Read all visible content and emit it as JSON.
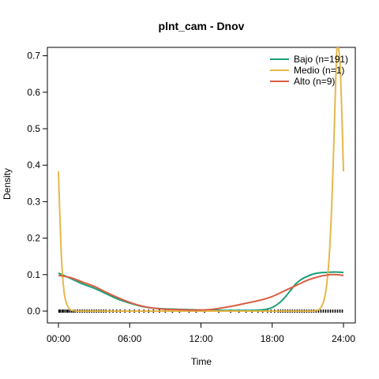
{
  "chart_data": {
    "type": "line",
    "title": "plnt_cam - Dnov",
    "xlabel": "Time",
    "ylabel": "Density",
    "xlim": [
      0,
      24
    ],
    "ylim": [
      0,
      0.71
    ],
    "x_ticks": [
      {
        "value": 0,
        "label": "00:00"
      },
      {
        "value": 6,
        "label": "06:00"
      },
      {
        "value": 12,
        "label": "12:00"
      },
      {
        "value": 18,
        "label": "18:00"
      },
      {
        "value": 24,
        "label": "24:00"
      }
    ],
    "y_ticks": [
      {
        "value": 0.0,
        "label": "0.0"
      },
      {
        "value": 0.1,
        "label": "0.1"
      },
      {
        "value": 0.2,
        "label": "0.2"
      },
      {
        "value": 0.3,
        "label": "0.3"
      },
      {
        "value": 0.4,
        "label": "0.4"
      },
      {
        "value": 0.5,
        "label": "0.5"
      },
      {
        "value": 0.6,
        "label": "0.6"
      },
      {
        "value": 0.7,
        "label": "0.7"
      }
    ],
    "grid": false,
    "legend_position": "top-right",
    "series": [
      {
        "name": "Bajo (n=191)",
        "color": "#1b9e77",
        "x": [
          0,
          1,
          2,
          3,
          4,
          5,
          6,
          7,
          8,
          9,
          10,
          11,
          12,
          13,
          14,
          15,
          16,
          17,
          17.5,
          18,
          18.5,
          19,
          19.5,
          20,
          20.5,
          21,
          21.5,
          22,
          22.5,
          23,
          23.5,
          24
        ],
        "y": [
          0.104,
          0.09,
          0.075,
          0.063,
          0.048,
          0.033,
          0.022,
          0.013,
          0.008,
          0.006,
          0.005,
          0.004,
          0.003,
          0.003,
          0.002,
          0.002,
          0.002,
          0.003,
          0.005,
          0.01,
          0.02,
          0.035,
          0.055,
          0.075,
          0.088,
          0.096,
          0.102,
          0.105,
          0.106,
          0.107,
          0.107,
          0.106
        ]
      },
      {
        "name": "Medio (n=1)",
        "color": "#e6b84a",
        "x": [
          0,
          0.1,
          0.2,
          0.3,
          0.45,
          0.6,
          0.8,
          1.0,
          1.3,
          1.6,
          2,
          4,
          6,
          8,
          10,
          12,
          14,
          16,
          18,
          20,
          21,
          21.5,
          21.8,
          22,
          22.2,
          22.4,
          22.6,
          22.8,
          23.0,
          23.15,
          23.3,
          23.45,
          23.6,
          23.75,
          23.9,
          24
        ],
        "y": [
          0.383,
          0.28,
          0.19,
          0.12,
          0.06,
          0.03,
          0.012,
          0.004,
          0.001,
          0.0,
          0.0,
          0.0,
          0.0,
          0.0,
          0.0,
          0.0,
          0.0,
          0.0,
          0.0,
          0.0,
          0.0,
          0.0,
          0.002,
          0.006,
          0.015,
          0.035,
          0.075,
          0.15,
          0.28,
          0.42,
          0.58,
          0.72,
          0.72,
          0.65,
          0.5,
          0.383
        ]
      },
      {
        "name": "Alto (n=9)",
        "color": "#d95f45",
        "x": [
          0,
          1,
          2,
          3,
          4,
          5,
          6,
          7,
          8,
          9,
          10,
          11,
          12,
          13,
          14,
          15,
          16,
          17,
          18,
          19,
          20,
          21,
          22,
          23,
          24
        ],
        "y": [
          0.098,
          0.092,
          0.08,
          0.068,
          0.052,
          0.037,
          0.024,
          0.014,
          0.008,
          0.005,
          0.004,
          0.003,
          0.003,
          0.005,
          0.01,
          0.016,
          0.023,
          0.03,
          0.04,
          0.055,
          0.07,
          0.085,
          0.095,
          0.1,
          0.098
        ]
      }
    ],
    "rug": {
      "color": "#000000",
      "x": [
        0.05,
        0.15,
        0.3,
        0.4,
        0.55,
        0.7,
        0.8,
        0.95,
        1.1,
        1.25,
        1.4,
        1.6,
        1.8,
        2.0,
        2.2,
        2.4,
        2.6,
        2.8,
        3.0,
        3.2,
        3.4,
        3.6,
        3.8,
        4.0,
        4.3,
        4.6,
        4.9,
        5.2,
        5.6,
        6.0,
        6.4,
        6.8,
        7.2,
        7.6,
        8.0,
        8.5,
        9.0,
        9.6,
        10.2,
        11.0,
        11.6,
        12.3,
        13.5,
        14.5,
        15.2,
        15.8,
        16.3,
        16.8,
        17.2,
        17.6,
        17.9,
        18.2,
        18.5,
        18.7,
        18.9,
        19.1,
        19.3,
        19.5,
        19.7,
        19.9,
        20.1,
        20.3,
        20.5,
        20.7,
        20.9,
        21.1,
        21.3,
        21.5,
        21.7,
        21.9,
        22.1,
        22.3,
        22.5,
        22.7,
        22.9,
        23.1,
        23.3,
        23.5,
        23.7,
        23.9
      ]
    }
  }
}
